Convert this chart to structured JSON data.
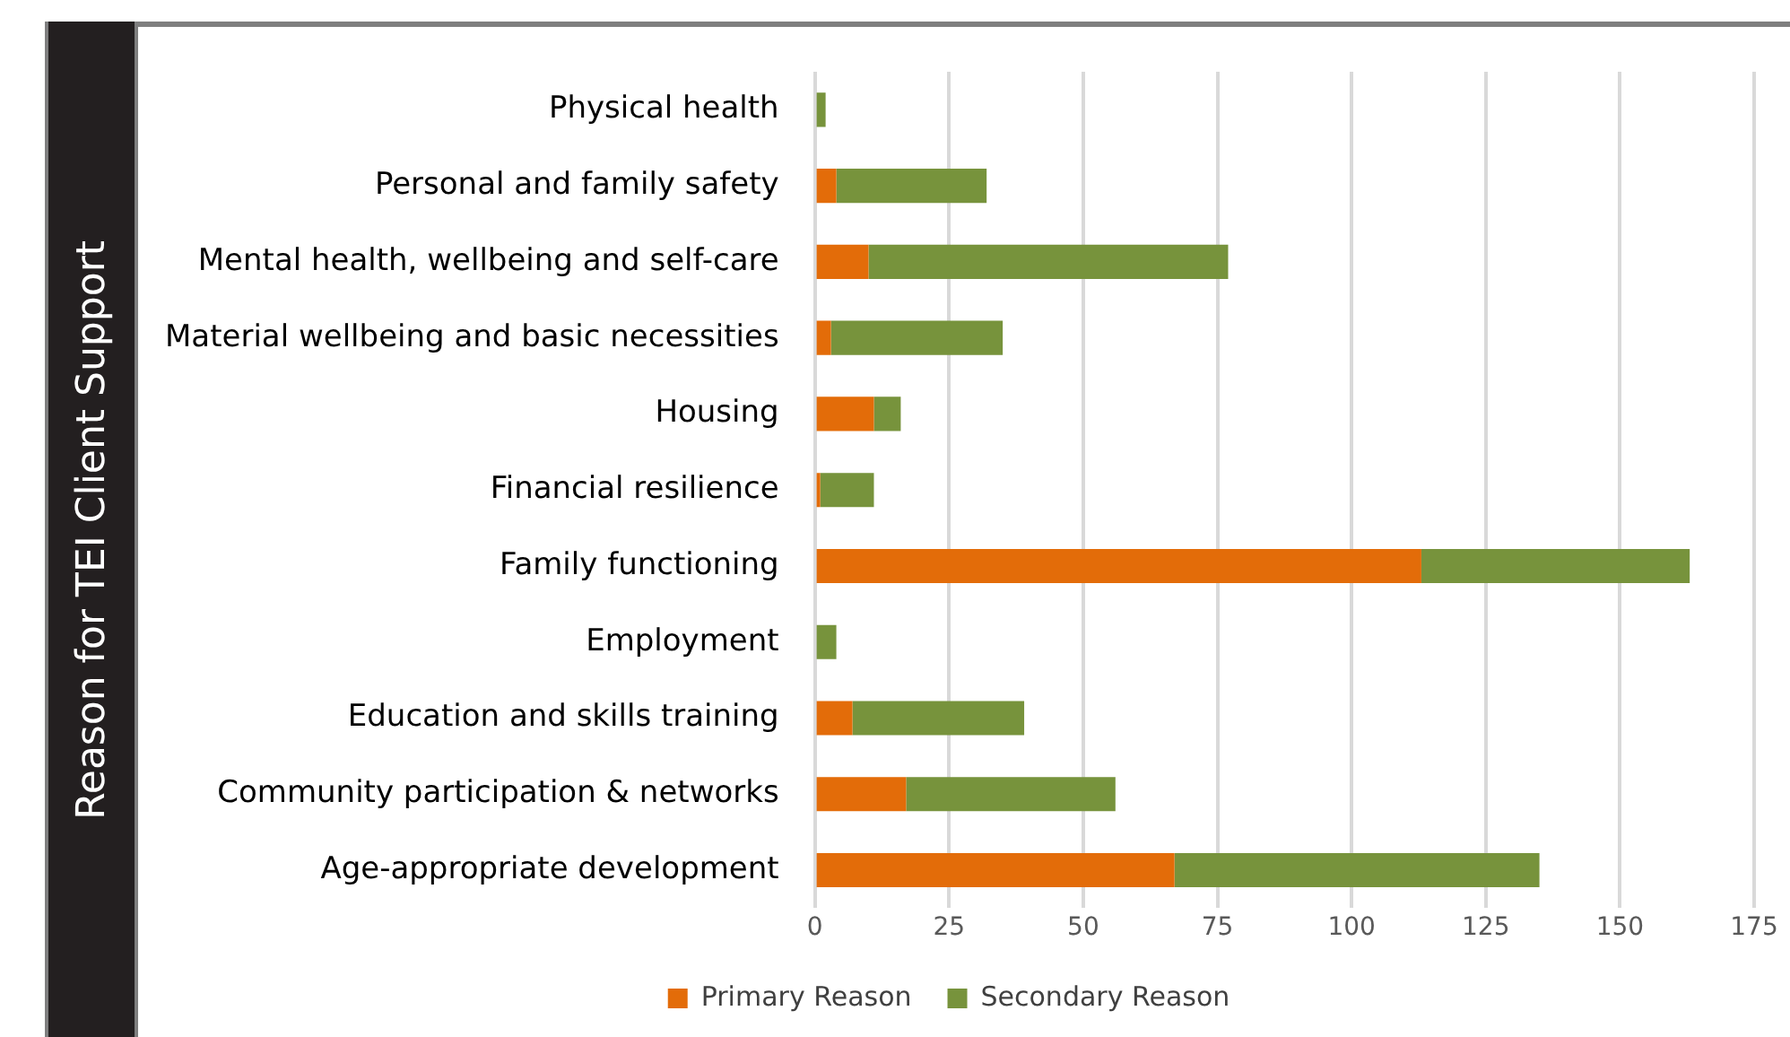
{
  "chart_data": {
    "type": "bar",
    "orientation": "horizontal",
    "stacked": true,
    "ylabel": "Reason for TEI Client Support",
    "categories": [
      "Physical health",
      "Personal and family safety",
      "Mental health, wellbeing and self-care",
      "Material wellbeing and basic necessities",
      "Housing",
      "Financial resilience",
      "Family functioning",
      "Employment",
      "Education and skills training",
      "Community participation & networks",
      "Age-appropriate development"
    ],
    "series": [
      {
        "name": "Primary Reason",
        "color": "#e36c09",
        "values": [
          0,
          4,
          10,
          3,
          11,
          1,
          113,
          0,
          7,
          17,
          67
        ]
      },
      {
        "name": "Secondary Reason",
        "color": "#77933c",
        "values": [
          2,
          28,
          67,
          32,
          5,
          10,
          50,
          4,
          32,
          39,
          68
        ]
      }
    ],
    "xlim": [
      0,
      175
    ],
    "xticks": [
      0,
      25,
      50,
      75,
      100,
      125,
      150,
      175
    ],
    "grid": "x",
    "legend": "bottom"
  }
}
